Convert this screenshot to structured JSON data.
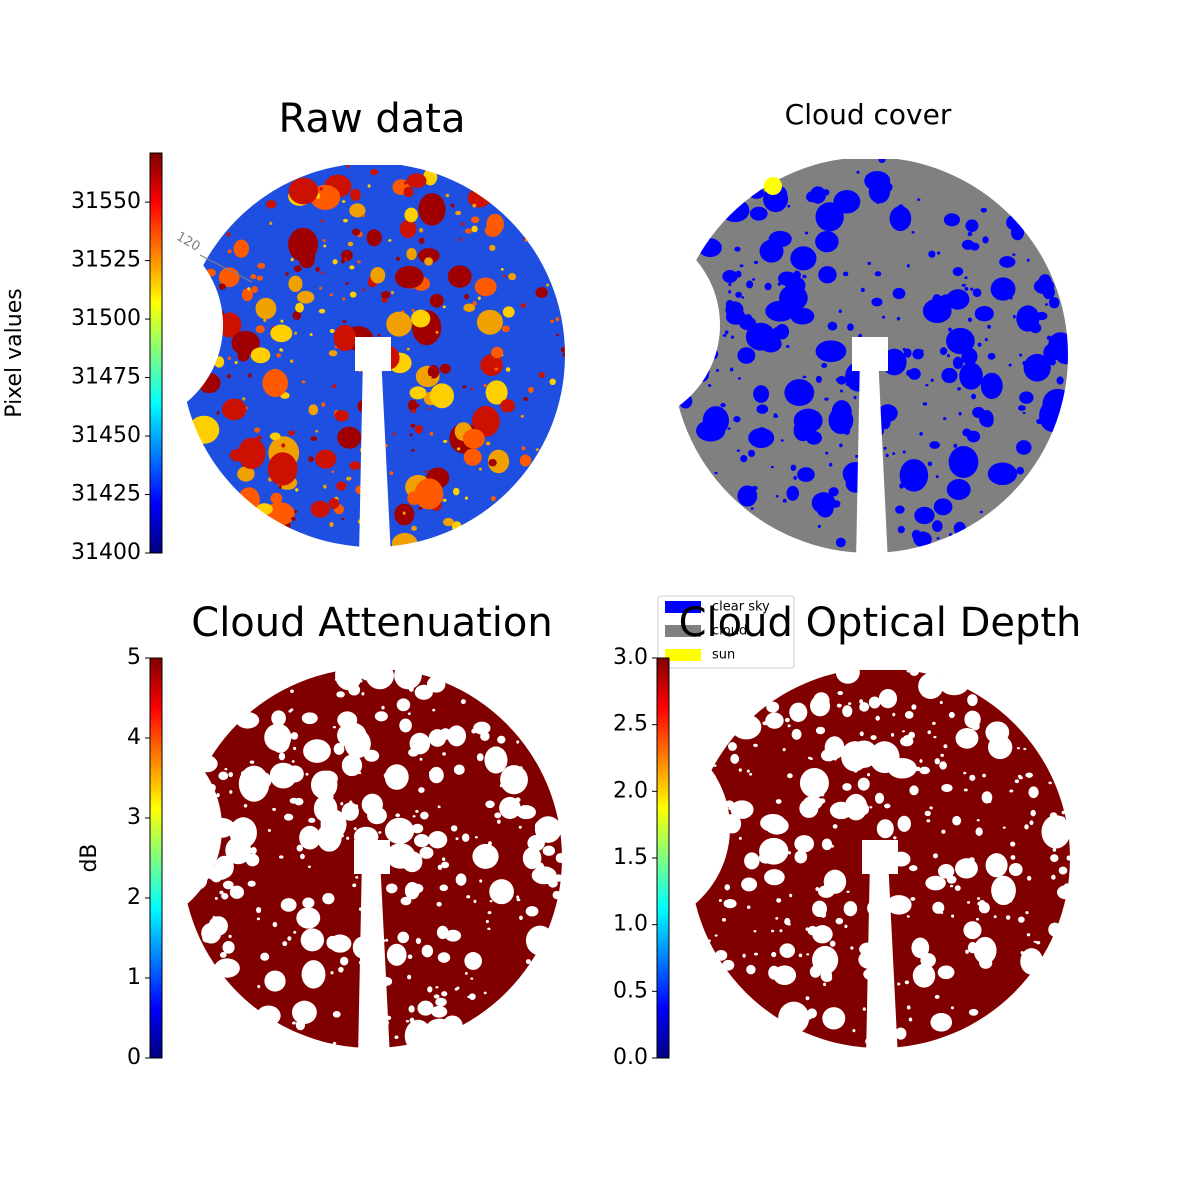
{
  "chart_data": [
    {
      "type": "image",
      "title": "Raw data",
      "colormap": "jet",
      "ylabel": "Pixel values",
      "ylim": [
        31400,
        31571
      ],
      "yticks": [
        31400,
        31425,
        31450,
        31475,
        31500,
        31525,
        31550
      ],
      "annotation": "120"
    },
    {
      "type": "image",
      "title": "Cloud cover",
      "legend": [
        {
          "name": "clear sky",
          "color": "#0000ff"
        },
        {
          "name": "cloud",
          "color": "#808080"
        },
        {
          "name": "sun",
          "color": "#ffff00"
        }
      ]
    },
    {
      "type": "image",
      "title": "Cloud Attenuation",
      "colormap": "jet",
      "ylabel": "dB",
      "ylim": [
        0,
        5
      ],
      "yticks": [
        0,
        1,
        2,
        3,
        4,
        5
      ]
    },
    {
      "type": "image",
      "title": "Cloud Optical Depth",
      "colormap": "jet",
      "ylim": [
        0,
        3
      ],
      "yticks": [
        {
          "value": 0,
          "label": "0.0"
        },
        0.5,
        {
          "value": 1,
          "label": "1.0"
        },
        1.5,
        {
          "value": 2,
          "label": "2.0"
        },
        2.5,
        {
          "value": 3,
          "label": "3.0"
        }
      ]
    }
  ]
}
